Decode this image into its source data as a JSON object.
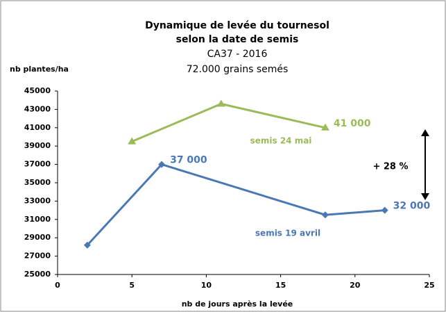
{
  "chart_data": {
    "type": "line",
    "title": [
      "Dynamique de levée du tournesol",
      "selon la date de semis"
    ],
    "subtitle": [
      "CA37 - 2016",
      "72.000 grains semés"
    ],
    "y_label": "nb plantes/ha",
    "x_label": "nb de jours après la levée",
    "annotation": "+ 28 %",
    "series": [
      {
        "name": "semis 24 mai",
        "color": "#9bbb59",
        "marker": "triangle",
        "x": [
          5,
          11,
          18
        ],
        "values": [
          39500,
          43600,
          41000
        ],
        "value_labels": [
          null,
          null,
          "41 000"
        ]
      },
      {
        "name": "semis 19 avril",
        "color": "#4a78b5",
        "marker": "diamond",
        "x": [
          2,
          7,
          18,
          22
        ],
        "values": [
          28200,
          37000,
          31500,
          32000
        ],
        "value_labels": [
          null,
          "37 000",
          null,
          "32 000"
        ]
      }
    ],
    "xlim": [
      0,
      25
    ],
    "xticks": [
      0,
      5,
      10,
      15,
      20,
      25
    ],
    "ylim": [
      25000,
      45000
    ],
    "yticks": [
      25000,
      27000,
      29000,
      31000,
      33000,
      35000,
      37000,
      39000,
      41000,
      43000,
      45000
    ],
    "grid": false
  }
}
